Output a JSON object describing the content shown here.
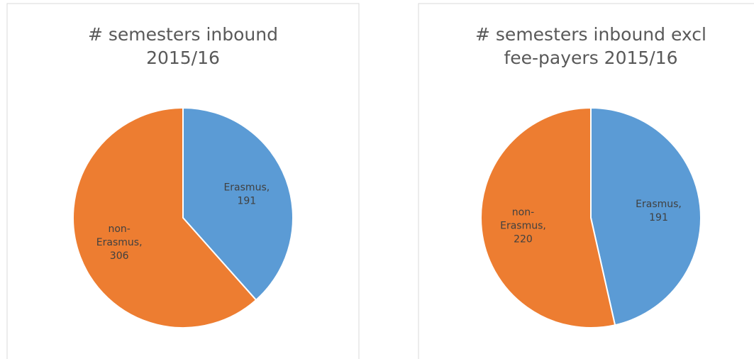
{
  "chart_data": [
    {
      "type": "pie",
      "title": [
        "# semesters inbound",
        "2015/16"
      ],
      "value_labels": [
        "Erasmus, 191",
        "non-Erasmus, 306"
      ],
      "values": [
        191,
        306
      ],
      "colors": [
        "#5b9bd5",
        "#ed7d31"
      ]
    },
    {
      "type": "pie",
      "title": [
        "# semesters inbound excl",
        "fee-payers 2015/16"
      ],
      "value_labels": [
        "Erasmus, 191",
        "non-Erasmus, 220"
      ],
      "values": [
        191,
        220
      ],
      "colors": [
        "#5b9bd5",
        "#ed7d31"
      ]
    }
  ]
}
